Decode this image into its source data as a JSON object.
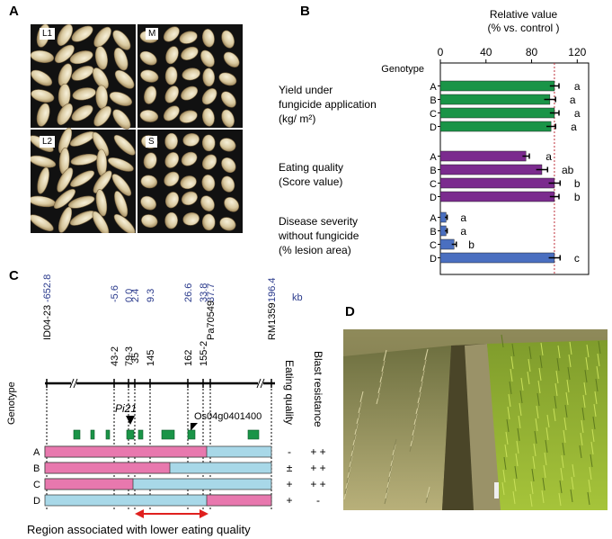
{
  "panels": {
    "A": "A",
    "B": "B",
    "C": "C",
    "D": "D"
  },
  "photos": [
    {
      "label": "L1"
    },
    {
      "label": "M"
    },
    {
      "label": "L2"
    },
    {
      "label": "S"
    }
  ],
  "chart_data": {
    "type": "bar",
    "orientation": "horizontal",
    "title": "Relative value",
    "subtitle": "(% vs. control )",
    "axis_label_genotype": "Genotype",
    "xlim": [
      0,
      130
    ],
    "xticks": [
      0,
      40,
      80,
      120
    ],
    "control_line": 100,
    "groups": [
      {
        "name_lines": [
          "Yield under",
          "fungicide application",
          "(kg/ m²)"
        ],
        "color": "#1a9447",
        "bars": [
          {
            "genotype": "A",
            "value": 100,
            "error": 4,
            "letter": "a"
          },
          {
            "genotype": "B",
            "value": 96,
            "error": 5,
            "letter": "a"
          },
          {
            "genotype": "C",
            "value": 100,
            "error": 4,
            "letter": "a"
          },
          {
            "genotype": "D",
            "value": 97,
            "error": 4,
            "letter": "a"
          }
        ]
      },
      {
        "name_lines": [
          "Eating quality",
          "(Score value)"
        ],
        "color": "#7b2b8e",
        "bars": [
          {
            "genotype": "A",
            "value": 75,
            "error": 3,
            "letter": "a"
          },
          {
            "genotype": "B",
            "value": 89,
            "error": 5,
            "letter": "ab"
          },
          {
            "genotype": "C",
            "value": 100,
            "error": 5,
            "letter": "b"
          },
          {
            "genotype": "D",
            "value": 100,
            "error": 4,
            "letter": "b"
          }
        ]
      },
      {
        "name_lines": [
          "Disease severity",
          "without fungicide",
          "(% lesion area)"
        ],
        "color": "#4a6fc0",
        "bars": [
          {
            "genotype": "A",
            "value": 5,
            "error": 1,
            "letter": "a"
          },
          {
            "genotype": "B",
            "value": 5,
            "error": 1,
            "letter": "a"
          },
          {
            "genotype": "C",
            "value": 12,
            "error": 2,
            "letter": "b"
          },
          {
            "genotype": "D",
            "value": 100,
            "error": 5,
            "letter": "c"
          }
        ]
      }
    ]
  },
  "map": {
    "kb_unit": "kb",
    "positions": [
      "-652.8",
      "-5.6",
      "0.0",
      "2.4",
      "9.3",
      "26.6",
      "33.8",
      "37.7",
      "196.4"
    ],
    "markers": [
      "ID04-23",
      "43-2",
      "79-3",
      "35",
      "145",
      "162",
      "155-2",
      "Pa70549",
      "RM1359"
    ],
    "gene_pi21": "Pi21",
    "gene_os": "Os04g0401400",
    "genotype_label": "Genotype",
    "col_eating": "Eating quality",
    "col_blast": "Blast  resistance",
    "rows": [
      {
        "name": "A",
        "eating": "-",
        "blast": "+ +"
      },
      {
        "name": "B",
        "eating": "±",
        "blast": "+ +"
      },
      {
        "name": "C",
        "eating": "+",
        "blast": "+ +"
      },
      {
        "name": "D",
        "eating": "+",
        "blast": "-"
      }
    ],
    "region_caption": "Region associated with lower eating quality",
    "colors": {
      "pink": "#e878ae",
      "blue": "#a8d8e8",
      "green": "#1a9447",
      "arrow": "#e0201e"
    }
  }
}
